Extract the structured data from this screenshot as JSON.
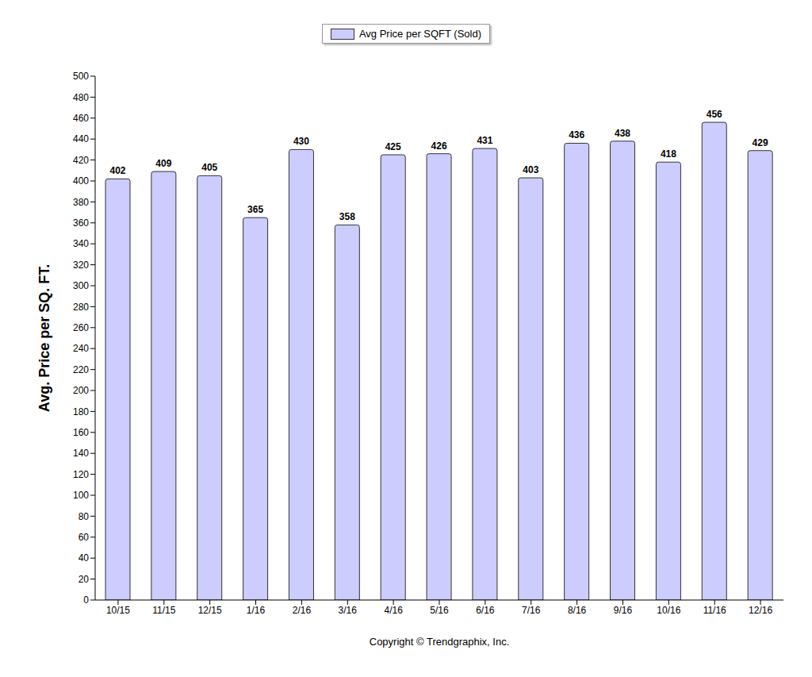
{
  "chart_data": {
    "type": "bar",
    "categories": [
      "10/15",
      "11/15",
      "12/15",
      "1/16",
      "2/16",
      "3/16",
      "4/16",
      "5/16",
      "6/16",
      "7/16",
      "8/16",
      "9/16",
      "10/16",
      "11/16",
      "12/16"
    ],
    "series": [
      {
        "name": "Avg Price per SQFT (Sold)",
        "color": "#ccccff",
        "values": [
          402,
          409,
          405,
          365,
          430,
          358,
          425,
          426,
          431,
          403,
          436,
          438,
          418,
          456,
          429
        ]
      }
    ],
    "y_label": "Avg. Price per SQ. FT.",
    "ylim": [
      0,
      500
    ],
    "yticks": [
      0,
      20,
      40,
      60,
      80,
      100,
      120,
      140,
      160,
      180,
      200,
      220,
      240,
      260,
      280,
      300,
      320,
      340,
      360,
      380,
      400,
      420,
      440,
      460,
      480,
      500
    ],
    "grid": false,
    "legend": "top",
    "data_labels": true,
    "annotations": [
      "Copyright © Trendgraphix, Inc."
    ]
  }
}
